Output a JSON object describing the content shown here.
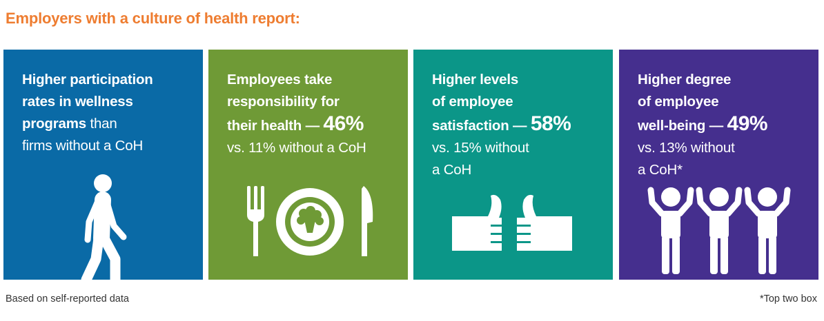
{
  "title": "Employers with a culture of health report:",
  "cards": [
    {
      "color": "#0a6aa6",
      "lines": {
        "l1": "Higher participation",
        "l2": "rates in wellness",
        "l3_bold": "programs",
        "l3_rest": " than",
        "l4": "firms without a CoH"
      },
      "icon": "walking-person-icon"
    },
    {
      "color": "#6f9a36",
      "lines": {
        "l1": "Employees take",
        "l2": "responsibility for",
        "l3": "their health — ",
        "stat": "46%",
        "l4": "vs. 11% without a CoH"
      },
      "icon": "fork-plate-knife-icon"
    },
    {
      "color": "#0b9688",
      "lines": {
        "l1": "Higher levels",
        "l2": "of employee",
        "l3": "satisfaction — ",
        "stat": "58%",
        "l4": "vs. 15% without",
        "l5": "a CoH"
      },
      "icon": "thumbs-up-icon"
    },
    {
      "color": "#452f8e",
      "lines": {
        "l1": "Higher degree",
        "l2": "of employee",
        "l3": "well-being — ",
        "stat": "49%",
        "l4": "vs. 13% without",
        "l5": "a CoH*"
      },
      "icon": "cheering-people-icon"
    }
  ],
  "footer": {
    "left": "Based on self-reported data",
    "right": "*Top two box"
  }
}
